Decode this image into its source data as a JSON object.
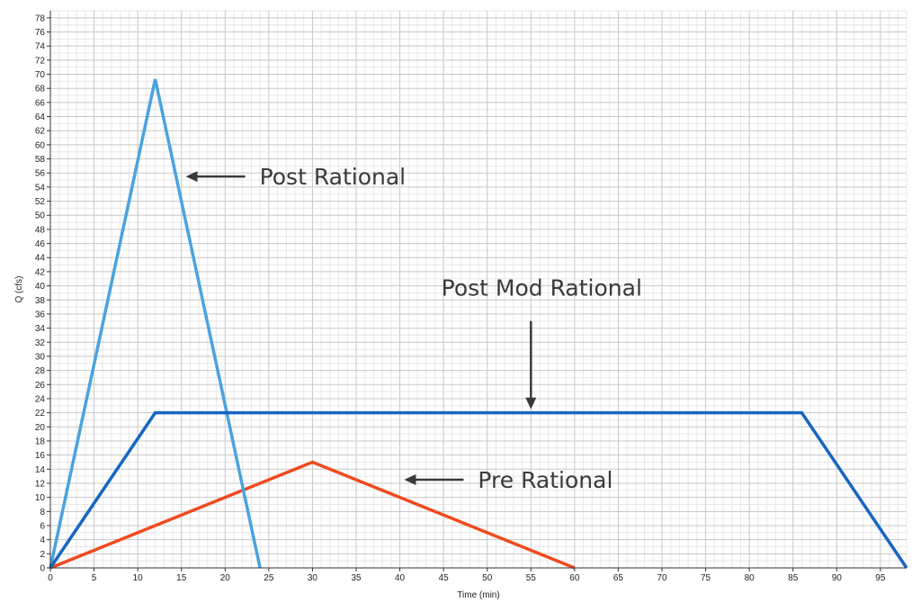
{
  "chart_data": {
    "type": "line",
    "title": "",
    "xlabel": "Time (min)",
    "ylabel": "Q (cfs)",
    "xlim": [
      0,
      98
    ],
    "ylim": [
      0,
      79
    ],
    "x_major_step": 5,
    "x_minor_step": 1,
    "y_major_step": 2,
    "y_minor_step": 1,
    "grid": true,
    "legend": "none",
    "series": [
      {
        "color": "#f04a1e",
        "points": [
          [
            0,
            0
          ],
          [
            30,
            15
          ],
          [
            60,
            0
          ]
        ]
      },
      {
        "color": "#4aa3df",
        "points": [
          [
            0,
            0
          ],
          [
            12,
            69.3
          ],
          [
            24,
            0
          ]
        ]
      },
      {
        "color": "#1766c2",
        "points": [
          [
            0,
            0
          ],
          [
            12,
            22
          ],
          [
            86,
            22
          ],
          [
            98,
            0
          ]
        ]
      }
    ],
    "annotations": [
      {
        "text": "Post Rational",
        "arrow": "left",
        "x": 15.5,
        "y": 55.5
      },
      {
        "text": "Post Mod Rational",
        "arrow": "down",
        "x": 55,
        "y": 22.5
      },
      {
        "text": "Pre Rational",
        "arrow": "left",
        "x": 40.5,
        "y": 12.5
      }
    ]
  }
}
